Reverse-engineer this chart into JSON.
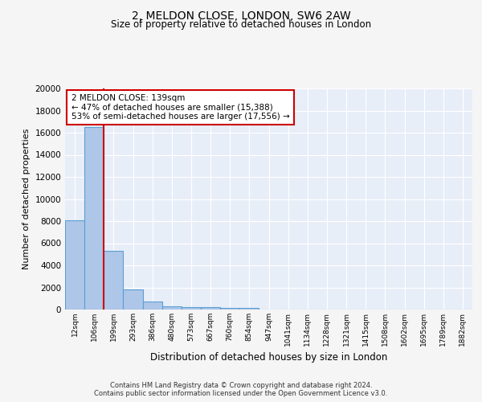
{
  "title1": "2, MELDON CLOSE, LONDON, SW6 2AW",
  "title2": "Size of property relative to detached houses in London",
  "xlabel": "Distribution of detached houses by size in London",
  "ylabel": "Number of detached properties",
  "footer": "Contains HM Land Registry data © Crown copyright and database right 2024.\nContains public sector information licensed under the Open Government Licence v3.0.",
  "categories": [
    "12sqm",
    "106sqm",
    "199sqm",
    "293sqm",
    "386sqm",
    "480sqm",
    "573sqm",
    "667sqm",
    "760sqm",
    "854sqm",
    "947sqm",
    "1041sqm",
    "1134sqm",
    "1228sqm",
    "1321sqm",
    "1415sqm",
    "1508sqm",
    "1602sqm",
    "1695sqm",
    "1789sqm",
    "1882sqm"
  ],
  "values": [
    8100,
    16500,
    5300,
    1850,
    700,
    300,
    225,
    200,
    175,
    150,
    0,
    0,
    0,
    0,
    0,
    0,
    0,
    0,
    0,
    0,
    0
  ],
  "bar_color": "#aec6e8",
  "bar_edge_color": "#5a9fd4",
  "red_line_x": 1.47,
  "annotation_text": "2 MELDON CLOSE: 139sqm\n← 47% of detached houses are smaller (15,388)\n53% of semi-detached houses are larger (17,556) →",
  "annotation_box_color": "#ffffff",
  "annotation_box_edge": "#cc0000",
  "ylim": [
    0,
    20000
  ],
  "yticks": [
    0,
    2000,
    4000,
    6000,
    8000,
    10000,
    12000,
    14000,
    16000,
    18000,
    20000
  ],
  "bg_color": "#e8eef8",
  "grid_color": "#ffffff",
  "red_line_color": "#cc0000",
  "fig_bg_color": "#f5f5f5"
}
